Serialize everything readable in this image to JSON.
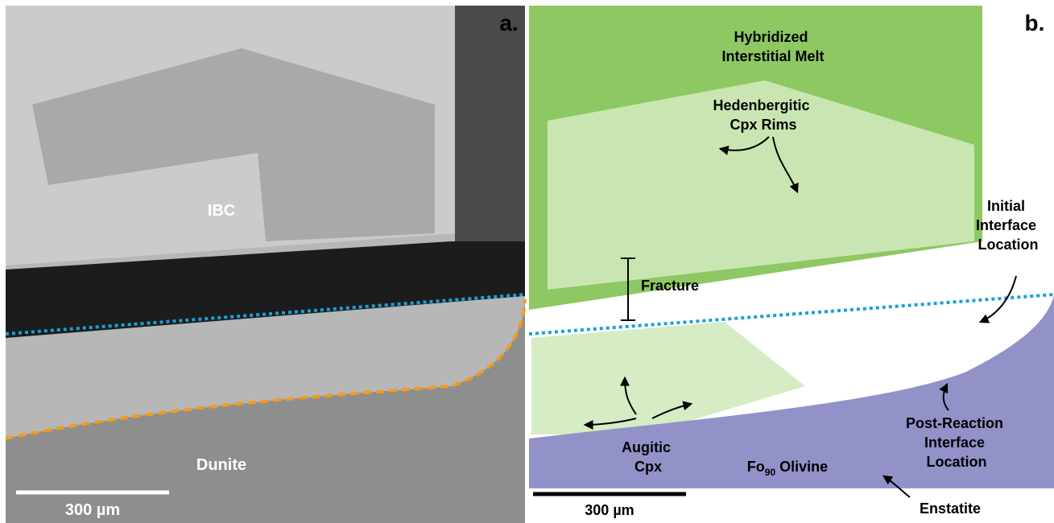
{
  "panel_a": {
    "label": "a.",
    "ibc_label": "IBC",
    "dunite_label": "Dunite",
    "scale_bar": "300 µm"
  },
  "panel_b": {
    "label": "b.",
    "hybridized_melt": [
      "Hybridized",
      "Interstitial Melt"
    ],
    "hedenbergitic_rims": [
      "Hedenbergitic",
      "Cpx Rims"
    ],
    "initial_interface": [
      "Initial",
      "Interface",
      "Location"
    ],
    "fracture": "Fracture",
    "augitic_cpx": [
      "Augitic",
      "Cpx"
    ],
    "post_reaction_interface": [
      "Post-Reaction",
      "Interface",
      "Location"
    ],
    "olivine": {
      "main": "Fo",
      "subscript": "90",
      "rest": " Olivine"
    },
    "enstatite": "Enstatite",
    "scale_bar": "300 µm"
  }
}
